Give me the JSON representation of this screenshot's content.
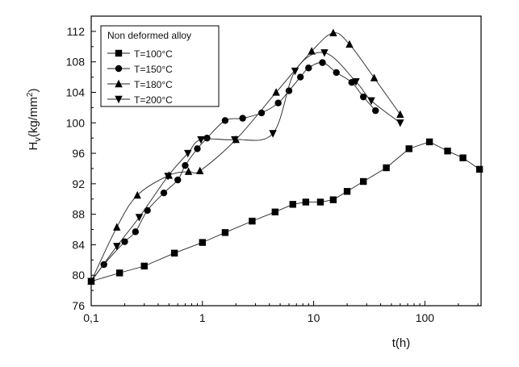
{
  "chart_data": {
    "type": "line",
    "title": "",
    "xlabel": "t(h)",
    "ylabel_main": "H",
    "ylabel_sub": "v",
    "ylabel_unit": "(kg/mm",
    "ylabel_sup": "2",
    "ylabel_close": ")",
    "x_scale": "log",
    "xlim": [
      0.1,
      320
    ],
    "ylim": [
      76,
      114
    ],
    "x_ticks": [
      0.1,
      1,
      10,
      100
    ],
    "x_tick_labels": [
      "0,1",
      "1",
      "10",
      "100"
    ],
    "y_ticks": [
      76,
      80,
      84,
      88,
      92,
      96,
      100,
      104,
      108,
      112
    ],
    "y_tick_labels": [
      "76",
      "80",
      "84",
      "88",
      "92",
      "96",
      "100",
      "104",
      "108",
      "112"
    ],
    "legend_title": "Non deformed alloy",
    "legend_position": "top-left",
    "grid": false,
    "series": [
      {
        "name": "T=100°C",
        "marker": "square",
        "x": [
          0.1,
          0.18,
          0.3,
          0.56,
          1.0,
          1.6,
          2.8,
          4.5,
          6.5,
          8.5,
          11.5,
          15,
          20,
          28,
          45,
          72,
          110,
          160,
          220,
          310
        ],
        "y": [
          79.2,
          80.3,
          81.2,
          82.9,
          84.3,
          85.6,
          87.1,
          88.3,
          89.3,
          89.6,
          89.6,
          89.9,
          91.0,
          92.3,
          94.1,
          96.6,
          97.5,
          96.3,
          95.4,
          93.9
        ]
      },
      {
        "name": "T=150°C",
        "marker": "circle",
        "x": [
          0.1,
          0.13,
          0.2,
          0.25,
          0.32,
          0.45,
          0.6,
          0.7,
          0.9,
          1.1,
          1.6,
          2.3,
          3.4,
          4.8,
          6.0,
          7.6,
          9.0,
          12,
          16,
          22,
          28,
          36
        ],
        "y": [
          79.2,
          81.4,
          84.4,
          85.7,
          88.5,
          90.8,
          92.5,
          94.4,
          96.6,
          98.0,
          100.3,
          100.6,
          101.3,
          102.6,
          104.2,
          106.0,
          107.2,
          107.9,
          106.6,
          105.3,
          103.4,
          101.6
        ]
      },
      {
        "name": "T=180°C",
        "marker": "triangle-up",
        "x": [
          0.1,
          0.17,
          0.26,
          0.5,
          0.75,
          0.95,
          2.0,
          4.6,
          9.6,
          15,
          21,
          35,
          60
        ],
        "y": [
          79.2,
          86.3,
          90.5,
          93.1,
          93.6,
          93.7,
          97.8,
          104.0,
          109.4,
          111.8,
          110.3,
          105.9,
          101.1
        ]
      },
      {
        "name": "T=200°C",
        "marker": "triangle-down",
        "x": [
          0.1,
          0.17,
          0.27,
          0.49,
          0.74,
          0.97,
          1.95,
          4.3,
          6.8,
          12.5,
          24,
          33,
          60
        ],
        "y": [
          79.2,
          83.8,
          87.6,
          93.0,
          96.0,
          97.8,
          97.8,
          98.6,
          106.8,
          109.2,
          105.4,
          102.9,
          100.0
        ]
      }
    ]
  }
}
